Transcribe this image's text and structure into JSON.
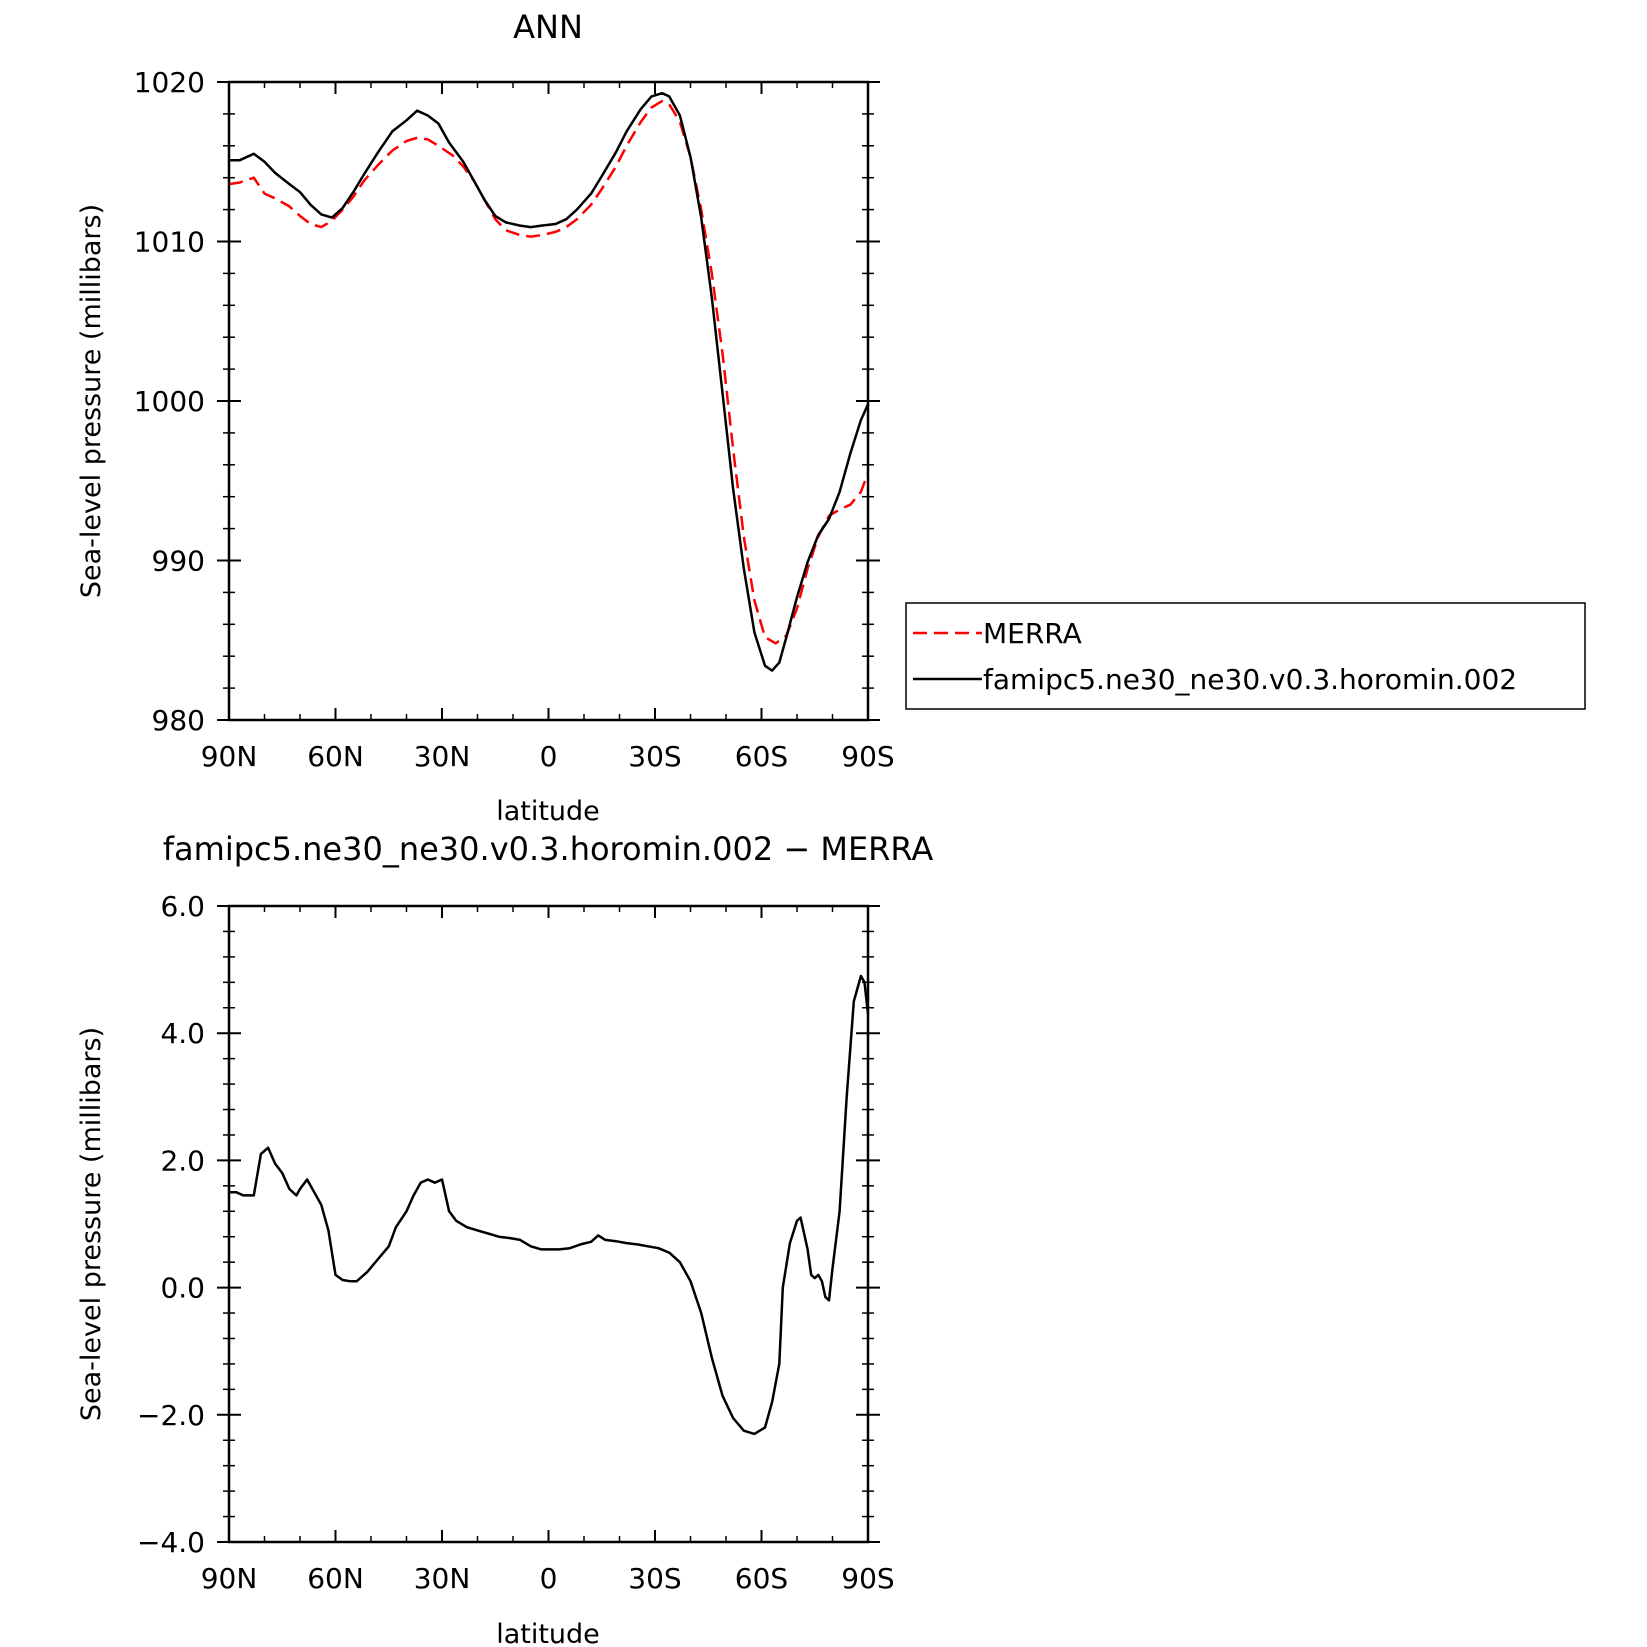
{
  "chart_data": [
    {
      "type": "line",
      "title": "ANN",
      "xlabel": "latitude",
      "ylabel": "Sea-level pressure (millibars)",
      "xlim": [
        90,
        -90
      ],
      "ylim": [
        980,
        1020
      ],
      "x_ticks": [
        {
          "value": 90,
          "label": "90N"
        },
        {
          "value": 60,
          "label": "60N"
        },
        {
          "value": 30,
          "label": "30N"
        },
        {
          "value": 0,
          "label": "0"
        },
        {
          "value": -30,
          "label": "30S"
        },
        {
          "value": -60,
          "label": "60S"
        },
        {
          "value": -90,
          "label": "90S"
        }
      ],
      "y_ticks": [
        {
          "value": 1020,
          "label": "1020"
        },
        {
          "value": 1010,
          "label": "1010"
        },
        {
          "value": 1000,
          "label": "1000"
        },
        {
          "value": 990,
          "label": "990"
        },
        {
          "value": 980,
          "label": "980"
        }
      ],
      "legend": {
        "placement": "right",
        "entries": [
          "MERRA",
          "famipc5.ne30_ne30.v0.3.horomin.002"
        ]
      },
      "series": [
        {
          "name": "MERRA",
          "color": "#ff0000",
          "dash": "dashed",
          "points": [
            [
              90,
              1013.6
            ],
            [
              87,
              1013.7
            ],
            [
              83,
              1014.0
            ],
            [
              80,
              1013.0
            ],
            [
              77,
              1012.7
            ],
            [
              73,
              1012.2
            ],
            [
              70,
              1011.6
            ],
            [
              67,
              1011.1
            ],
            [
              64,
              1010.9
            ],
            [
              61,
              1011.3
            ],
            [
              58,
              1012.0
            ],
            [
              55,
              1012.8
            ],
            [
              52,
              1013.8
            ],
            [
              48,
              1014.8
            ],
            [
              44,
              1015.7
            ],
            [
              40,
              1016.3
            ],
            [
              37,
              1016.5
            ],
            [
              34,
              1016.4
            ],
            [
              31,
              1016.0
            ],
            [
              27,
              1015.4
            ],
            [
              24,
              1014.7
            ],
            [
              21,
              1013.8
            ],
            [
              18,
              1012.6
            ],
            [
              15,
              1011.4
            ],
            [
              12,
              1010.7
            ],
            [
              8,
              1010.4
            ],
            [
              5,
              1010.3
            ],
            [
              2,
              1010.4
            ],
            [
              -2,
              1010.6
            ],
            [
              -5,
              1010.9
            ],
            [
              -8,
              1011.4
            ],
            [
              -12,
              1012.3
            ],
            [
              -15,
              1013.3
            ],
            [
              -19,
              1014.7
            ],
            [
              -22,
              1016.0
            ],
            [
              -26,
              1017.5
            ],
            [
              -29,
              1018.4
            ],
            [
              -32,
              1018.8
            ],
            [
              -34,
              1018.6
            ],
            [
              -37,
              1017.5
            ],
            [
              -40,
              1015.3
            ],
            [
              -43,
              1012.0
            ],
            [
              -46,
              1008.0
            ],
            [
              -49,
              1003.0
            ],
            [
              -52,
              997.0
            ],
            [
              -55,
              991.5
            ],
            [
              -58,
              987.5
            ],
            [
              -61,
              985.2
            ],
            [
              -64,
              984.8
            ],
            [
              -67,
              985.3
            ],
            [
              -70,
              987.0
            ],
            [
              -73,
              989.5
            ],
            [
              -76,
              991.5
            ],
            [
              -79,
              992.8
            ],
            [
              -82,
              993.2
            ],
            [
              -85,
              993.5
            ],
            [
              -88,
              994.3
            ],
            [
              -90,
              995.5
            ]
          ]
        },
        {
          "name": "famipc5.ne30_ne30.v0.3.horomin.002",
          "color": "#000000",
          "dash": "solid",
          "points": [
            [
              90,
              1015.1
            ],
            [
              87,
              1015.1
            ],
            [
              83,
              1015.5
            ],
            [
              80,
              1015.0
            ],
            [
              77,
              1014.3
            ],
            [
              73,
              1013.6
            ],
            [
              70,
              1013.1
            ],
            [
              67,
              1012.3
            ],
            [
              64,
              1011.7
            ],
            [
              61,
              1011.5
            ],
            [
              58,
              1012.1
            ],
            [
              55,
              1013.1
            ],
            [
              52,
              1014.2
            ],
            [
              48,
              1015.6
            ],
            [
              44,
              1016.9
            ],
            [
              40,
              1017.6
            ],
            [
              37,
              1018.2
            ],
            [
              34,
              1017.9
            ],
            [
              31,
              1017.4
            ],
            [
              28,
              1016.2
            ],
            [
              24,
              1015.0
            ],
            [
              21,
              1013.8
            ],
            [
              18,
              1012.6
            ],
            [
              15,
              1011.6
            ],
            [
              12,
              1011.2
            ],
            [
              8,
              1011.0
            ],
            [
              5,
              1010.9
            ],
            [
              2,
              1011.0
            ],
            [
              -2,
              1011.1
            ],
            [
              -5,
              1011.4
            ],
            [
              -8,
              1012.0
            ],
            [
              -12,
              1013.0
            ],
            [
              -15,
              1014.1
            ],
            [
              -19,
              1015.6
            ],
            [
              -22,
              1016.9
            ],
            [
              -26,
              1018.3
            ],
            [
              -29,
              1019.1
            ],
            [
              -32,
              1019.3
            ],
            [
              -34,
              1019.1
            ],
            [
              -37,
              1017.9
            ],
            [
              -40,
              1015.3
            ],
            [
              -43,
              1011.5
            ],
            [
              -46,
              1006.5
            ],
            [
              -49,
              1000.5
            ],
            [
              -52,
              994.5
            ],
            [
              -55,
              989.5
            ],
            [
              -58,
              985.5
            ],
            [
              -61,
              983.4
            ],
            [
              -63,
              983.1
            ],
            [
              -65,
              983.6
            ],
            [
              -67,
              985.2
            ],
            [
              -70,
              987.7
            ],
            [
              -73,
              989.9
            ],
            [
              -76,
              991.6
            ],
            [
              -79,
              992.6
            ],
            [
              -82,
              994.3
            ],
            [
              -85,
              996.7
            ],
            [
              -88,
              998.8
            ],
            [
              -90,
              999.8
            ]
          ]
        }
      ]
    },
    {
      "type": "line",
      "title": "famipc5.ne30_ne30.v0.3.horomin.002 − MERRA",
      "xlabel": "latitude",
      "ylabel": "Sea-level pressure (millibars)",
      "xlim": [
        90,
        -90
      ],
      "ylim": [
        -4,
        6
      ],
      "x_ticks": [
        {
          "value": 90,
          "label": "90N"
        },
        {
          "value": 60,
          "label": "60N"
        },
        {
          "value": 30,
          "label": "30N"
        },
        {
          "value": 0,
          "label": "0"
        },
        {
          "value": -30,
          "label": "30S"
        },
        {
          "value": -60,
          "label": "60S"
        },
        {
          "value": -90,
          "label": "90S"
        }
      ],
      "y_ticks": [
        {
          "value": 6,
          "label": "6.0"
        },
        {
          "value": 4,
          "label": "4.0"
        },
        {
          "value": 2,
          "label": "2.0"
        },
        {
          "value": 0,
          "label": "0.0"
        },
        {
          "value": -2,
          "label": "−2.0"
        },
        {
          "value": -4,
          "label": "−4.0"
        }
      ],
      "series": [
        {
          "color": "#000000",
          "dash": "solid",
          "points": [
            [
              90,
              1.5
            ],
            [
              88,
              1.5
            ],
            [
              86,
              1.45
            ],
            [
              83,
              1.45
            ],
            [
              81,
              2.1
            ],
            [
              79,
              2.2
            ],
            [
              77,
              1.95
            ],
            [
              75,
              1.8
            ],
            [
              73,
              1.55
            ],
            [
              71,
              1.45
            ],
            [
              70,
              1.55
            ],
            [
              68,
              1.7
            ],
            [
              66,
              1.5
            ],
            [
              64,
              1.3
            ],
            [
              62,
              0.9
            ],
            [
              60,
              0.2
            ],
            [
              58,
              0.12
            ],
            [
              56,
              0.1
            ],
            [
              54,
              0.1
            ],
            [
              51,
              0.25
            ],
            [
              48,
              0.45
            ],
            [
              45,
              0.65
            ],
            [
              43,
              0.95
            ],
            [
              40,
              1.2
            ],
            [
              38,
              1.45
            ],
            [
              36,
              1.65
            ],
            [
              34,
              1.7
            ],
            [
              32,
              1.65
            ],
            [
              30,
              1.7
            ],
            [
              28,
              1.2
            ],
            [
              26,
              1.05
            ],
            [
              23,
              0.95
            ],
            [
              20,
              0.9
            ],
            [
              17,
              0.85
            ],
            [
              14,
              0.8
            ],
            [
              11,
              0.78
            ],
            [
              8,
              0.75
            ],
            [
              5,
              0.65
            ],
            [
              2,
              0.6
            ],
            [
              0,
              0.6
            ],
            [
              -3,
              0.6
            ],
            [
              -6,
              0.62
            ],
            [
              -9,
              0.68
            ],
            [
              -12,
              0.72
            ],
            [
              -14,
              0.82
            ],
            [
              -16,
              0.75
            ],
            [
              -19,
              0.73
            ],
            [
              -22,
              0.7
            ],
            [
              -25,
              0.68
            ],
            [
              -28,
              0.65
            ],
            [
              -31,
              0.62
            ],
            [
              -34,
              0.55
            ],
            [
              -37,
              0.4
            ],
            [
              -40,
              0.1
            ],
            [
              -43,
              -0.4
            ],
            [
              -46,
              -1.1
            ],
            [
              -49,
              -1.7
            ],
            [
              -52,
              -2.05
            ],
            [
              -55,
              -2.25
            ],
            [
              -58,
              -2.3
            ],
            [
              -61,
              -2.2
            ],
            [
              -63,
              -1.8
            ],
            [
              -65,
              -1.2
            ],
            [
              -66,
              0.0
            ],
            [
              -68,
              0.7
            ],
            [
              -70,
              1.05
            ],
            [
              -71,
              1.1
            ],
            [
              -73,
              0.6
            ],
            [
              -74,
              0.2
            ],
            [
              -75,
              0.15
            ],
            [
              -76,
              0.2
            ],
            [
              -77,
              0.1
            ],
            [
              -78,
              -0.15
            ],
            [
              -79,
              -0.2
            ],
            [
              -80,
              0.3
            ],
            [
              -82,
              1.2
            ],
            [
              -84,
              3.0
            ],
            [
              -86,
              4.5
            ],
            [
              -88,
              4.9
            ],
            [
              -89,
              4.8
            ],
            [
              -90,
              4.3
            ]
          ]
        }
      ]
    }
  ]
}
